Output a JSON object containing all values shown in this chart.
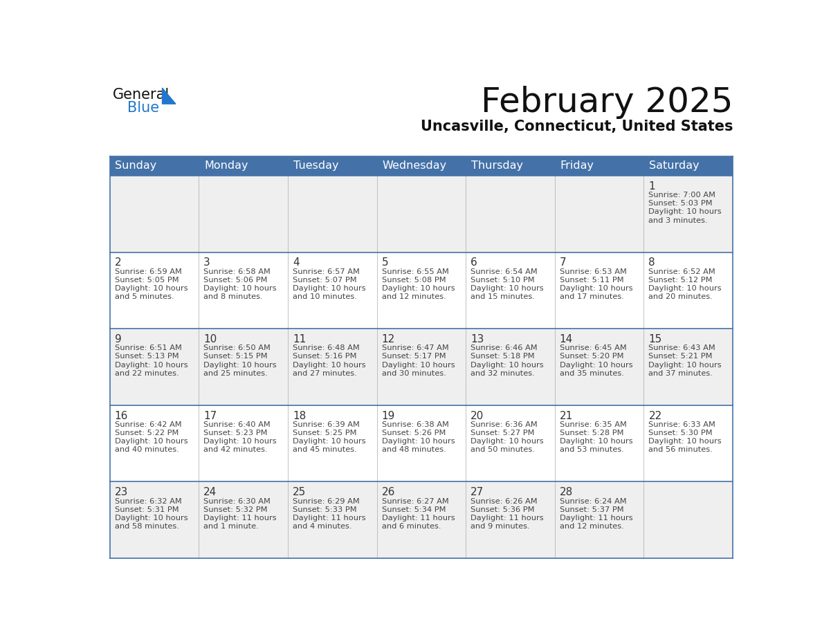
{
  "title": "February 2025",
  "subtitle": "Uncasville, Connecticut, United States",
  "header_bg_color": "#4472A8",
  "header_text_color": "#FFFFFF",
  "day_headers": [
    "Sunday",
    "Monday",
    "Tuesday",
    "Wednesday",
    "Thursday",
    "Friday",
    "Saturday"
  ],
  "row_bg_even": "#EFEFEF",
  "row_bg_odd": "#FFFFFF",
  "border_color": "#4472A8",
  "cell_border_color": "#AAAAAA",
  "date_text_color": "#333333",
  "info_text_color": "#444444",
  "logo_general_color": "#111111",
  "logo_blue_color": "#2277CC",
  "logo_triangle_color": "#2277CC",
  "calendar_data": [
    [
      null,
      null,
      null,
      null,
      null,
      null,
      {
        "day": 1,
        "sunrise": "7:00 AM",
        "sunset": "5:03 PM",
        "daylight": "10 hours and 3 minutes"
      }
    ],
    [
      {
        "day": 2,
        "sunrise": "6:59 AM",
        "sunset": "5:05 PM",
        "daylight": "10 hours and 5 minutes"
      },
      {
        "day": 3,
        "sunrise": "6:58 AM",
        "sunset": "5:06 PM",
        "daylight": "10 hours and 8 minutes"
      },
      {
        "day": 4,
        "sunrise": "6:57 AM",
        "sunset": "5:07 PM",
        "daylight": "10 hours and 10 minutes"
      },
      {
        "day": 5,
        "sunrise": "6:55 AM",
        "sunset": "5:08 PM",
        "daylight": "10 hours and 12 minutes"
      },
      {
        "day": 6,
        "sunrise": "6:54 AM",
        "sunset": "5:10 PM",
        "daylight": "10 hours and 15 minutes"
      },
      {
        "day": 7,
        "sunrise": "6:53 AM",
        "sunset": "5:11 PM",
        "daylight": "10 hours and 17 minutes"
      },
      {
        "day": 8,
        "sunrise": "6:52 AM",
        "sunset": "5:12 PM",
        "daylight": "10 hours and 20 minutes"
      }
    ],
    [
      {
        "day": 9,
        "sunrise": "6:51 AM",
        "sunset": "5:13 PM",
        "daylight": "10 hours and 22 minutes"
      },
      {
        "day": 10,
        "sunrise": "6:50 AM",
        "sunset": "5:15 PM",
        "daylight": "10 hours and 25 minutes"
      },
      {
        "day": 11,
        "sunrise": "6:48 AM",
        "sunset": "5:16 PM",
        "daylight": "10 hours and 27 minutes"
      },
      {
        "day": 12,
        "sunrise": "6:47 AM",
        "sunset": "5:17 PM",
        "daylight": "10 hours and 30 minutes"
      },
      {
        "day": 13,
        "sunrise": "6:46 AM",
        "sunset": "5:18 PM",
        "daylight": "10 hours and 32 minutes"
      },
      {
        "day": 14,
        "sunrise": "6:45 AM",
        "sunset": "5:20 PM",
        "daylight": "10 hours and 35 minutes"
      },
      {
        "day": 15,
        "sunrise": "6:43 AM",
        "sunset": "5:21 PM",
        "daylight": "10 hours and 37 minutes"
      }
    ],
    [
      {
        "day": 16,
        "sunrise": "6:42 AM",
        "sunset": "5:22 PM",
        "daylight": "10 hours and 40 minutes"
      },
      {
        "day": 17,
        "sunrise": "6:40 AM",
        "sunset": "5:23 PM",
        "daylight": "10 hours and 42 minutes"
      },
      {
        "day": 18,
        "sunrise": "6:39 AM",
        "sunset": "5:25 PM",
        "daylight": "10 hours and 45 minutes"
      },
      {
        "day": 19,
        "sunrise": "6:38 AM",
        "sunset": "5:26 PM",
        "daylight": "10 hours and 48 minutes"
      },
      {
        "day": 20,
        "sunrise": "6:36 AM",
        "sunset": "5:27 PM",
        "daylight": "10 hours and 50 minutes"
      },
      {
        "day": 21,
        "sunrise": "6:35 AM",
        "sunset": "5:28 PM",
        "daylight": "10 hours and 53 minutes"
      },
      {
        "day": 22,
        "sunrise": "6:33 AM",
        "sunset": "5:30 PM",
        "daylight": "10 hours and 56 minutes"
      }
    ],
    [
      {
        "day": 23,
        "sunrise": "6:32 AM",
        "sunset": "5:31 PM",
        "daylight": "10 hours and 58 minutes"
      },
      {
        "day": 24,
        "sunrise": "6:30 AM",
        "sunset": "5:32 PM",
        "daylight": "11 hours and 1 minute"
      },
      {
        "day": 25,
        "sunrise": "6:29 AM",
        "sunset": "5:33 PM",
        "daylight": "11 hours and 4 minutes"
      },
      {
        "day": 26,
        "sunrise": "6:27 AM",
        "sunset": "5:34 PM",
        "daylight": "11 hours and 6 minutes"
      },
      {
        "day": 27,
        "sunrise": "6:26 AM",
        "sunset": "5:36 PM",
        "daylight": "11 hours and 9 minutes"
      },
      {
        "day": 28,
        "sunrise": "6:24 AM",
        "sunset": "5:37 PM",
        "daylight": "11 hours and 12 minutes"
      },
      null
    ]
  ]
}
